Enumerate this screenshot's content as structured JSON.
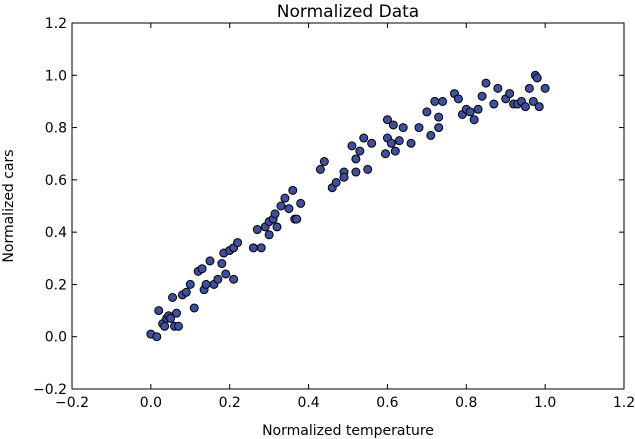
{
  "chart_data": {
    "type": "scatter",
    "title": "Normalized Data",
    "xlabel": "Normalized temperature",
    "ylabel": "Normalized cars",
    "xlim": [
      -0.2,
      1.2
    ],
    "ylim": [
      -0.2,
      1.2
    ],
    "x_ticks": [
      "−0.2",
      "0.0",
      "0.2",
      "0.4",
      "0.6",
      "0.8",
      "1.0",
      "1.2"
    ],
    "y_ticks": [
      "−0.2",
      "0.0",
      "0.2",
      "0.4",
      "0.6",
      "0.8",
      "1.0",
      "1.2"
    ],
    "grid": false,
    "marker_color": "#3e4f9e",
    "marker_edge_color": "#000000",
    "points": [
      {
        "x": 0.0,
        "y": 0.01
      },
      {
        "x": 0.015,
        "y": 0.0
      },
      {
        "x": 0.02,
        "y": 0.1
      },
      {
        "x": 0.03,
        "y": 0.05
      },
      {
        "x": 0.035,
        "y": 0.04
      },
      {
        "x": 0.04,
        "y": 0.07
      },
      {
        "x": 0.045,
        "y": 0.08
      },
      {
        "x": 0.05,
        "y": 0.07
      },
      {
        "x": 0.055,
        "y": 0.15
      },
      {
        "x": 0.06,
        "y": 0.04
      },
      {
        "x": 0.065,
        "y": 0.09
      },
      {
        "x": 0.07,
        "y": 0.04
      },
      {
        "x": 0.08,
        "y": 0.16
      },
      {
        "x": 0.09,
        "y": 0.17
      },
      {
        "x": 0.1,
        "y": 0.2
      },
      {
        "x": 0.11,
        "y": 0.11
      },
      {
        "x": 0.12,
        "y": 0.25
      },
      {
        "x": 0.13,
        "y": 0.26
      },
      {
        "x": 0.135,
        "y": 0.18
      },
      {
        "x": 0.14,
        "y": 0.2
      },
      {
        "x": 0.15,
        "y": 0.29
      },
      {
        "x": 0.16,
        "y": 0.2
      },
      {
        "x": 0.17,
        "y": 0.22
      },
      {
        "x": 0.18,
        "y": 0.28
      },
      {
        "x": 0.185,
        "y": 0.32
      },
      {
        "x": 0.19,
        "y": 0.24
      },
      {
        "x": 0.2,
        "y": 0.33
      },
      {
        "x": 0.21,
        "y": 0.22
      },
      {
        "x": 0.21,
        "y": 0.34
      },
      {
        "x": 0.22,
        "y": 0.36
      },
      {
        "x": 0.26,
        "y": 0.34
      },
      {
        "x": 0.27,
        "y": 0.41
      },
      {
        "x": 0.28,
        "y": 0.34
      },
      {
        "x": 0.29,
        "y": 0.42
      },
      {
        "x": 0.3,
        "y": 0.39
      },
      {
        "x": 0.3,
        "y": 0.44
      },
      {
        "x": 0.31,
        "y": 0.45
      },
      {
        "x": 0.315,
        "y": 0.47
      },
      {
        "x": 0.32,
        "y": 0.42
      },
      {
        "x": 0.33,
        "y": 0.5
      },
      {
        "x": 0.34,
        "y": 0.53
      },
      {
        "x": 0.35,
        "y": 0.49
      },
      {
        "x": 0.36,
        "y": 0.56
      },
      {
        "x": 0.365,
        "y": 0.45
      },
      {
        "x": 0.37,
        "y": 0.45
      },
      {
        "x": 0.38,
        "y": 0.51
      },
      {
        "x": 0.43,
        "y": 0.64
      },
      {
        "x": 0.44,
        "y": 0.67
      },
      {
        "x": 0.46,
        "y": 0.57
      },
      {
        "x": 0.47,
        "y": 0.59
      },
      {
        "x": 0.49,
        "y": 0.63
      },
      {
        "x": 0.49,
        "y": 0.61
      },
      {
        "x": 0.51,
        "y": 0.73
      },
      {
        "x": 0.52,
        "y": 0.68
      },
      {
        "x": 0.52,
        "y": 0.63
      },
      {
        "x": 0.53,
        "y": 0.71
      },
      {
        "x": 0.54,
        "y": 0.76
      },
      {
        "x": 0.55,
        "y": 0.64
      },
      {
        "x": 0.56,
        "y": 0.74
      },
      {
        "x": 0.595,
        "y": 0.7
      },
      {
        "x": 0.6,
        "y": 0.76
      },
      {
        "x": 0.6,
        "y": 0.83
      },
      {
        "x": 0.61,
        "y": 0.74
      },
      {
        "x": 0.615,
        "y": 0.81
      },
      {
        "x": 0.62,
        "y": 0.71
      },
      {
        "x": 0.63,
        "y": 0.75
      },
      {
        "x": 0.64,
        "y": 0.8
      },
      {
        "x": 0.66,
        "y": 0.74
      },
      {
        "x": 0.68,
        "y": 0.8
      },
      {
        "x": 0.7,
        "y": 0.86
      },
      {
        "x": 0.71,
        "y": 0.77
      },
      {
        "x": 0.72,
        "y": 0.9
      },
      {
        "x": 0.73,
        "y": 0.84
      },
      {
        "x": 0.73,
        "y": 0.8
      },
      {
        "x": 0.74,
        "y": 0.9
      },
      {
        "x": 0.77,
        "y": 0.93
      },
      {
        "x": 0.78,
        "y": 0.91
      },
      {
        "x": 0.79,
        "y": 0.85
      },
      {
        "x": 0.8,
        "y": 0.87
      },
      {
        "x": 0.81,
        "y": 0.86
      },
      {
        "x": 0.82,
        "y": 0.83
      },
      {
        "x": 0.83,
        "y": 0.87
      },
      {
        "x": 0.84,
        "y": 0.92
      },
      {
        "x": 0.85,
        "y": 0.97
      },
      {
        "x": 0.87,
        "y": 0.89
      },
      {
        "x": 0.88,
        "y": 0.95
      },
      {
        "x": 0.9,
        "y": 0.91
      },
      {
        "x": 0.91,
        "y": 0.93
      },
      {
        "x": 0.92,
        "y": 0.89
      },
      {
        "x": 0.93,
        "y": 0.89
      },
      {
        "x": 0.94,
        "y": 0.9
      },
      {
        "x": 0.95,
        "y": 0.88
      },
      {
        "x": 0.96,
        "y": 0.95
      },
      {
        "x": 0.97,
        "y": 0.9
      },
      {
        "x": 0.975,
        "y": 1.0
      },
      {
        "x": 0.98,
        "y": 0.99
      },
      {
        "x": 0.985,
        "y": 0.88
      },
      {
        "x": 1.0,
        "y": 0.95
      }
    ]
  }
}
